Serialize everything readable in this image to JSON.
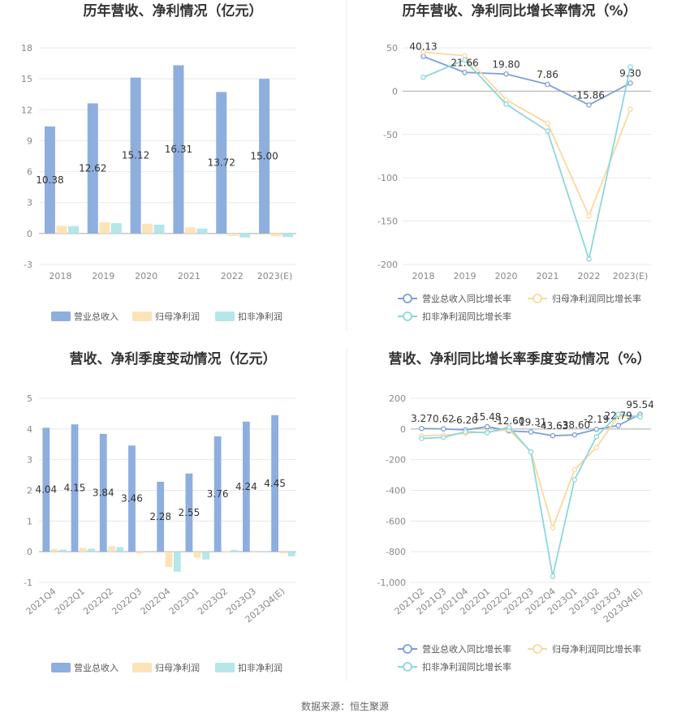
{
  "source": "数据来源：恒生聚源",
  "colors": {
    "revenue": "#8eaede",
    "net": "#fde3b8",
    "deducted": "#b4e6ea",
    "revenue_line": "#7b9ed9",
    "net_line": "#fbd89c",
    "deducted_line": "#8ad7de"
  },
  "chart_data": [
    {
      "type": "bar",
      "title": "历年营收、净利情况（亿元）",
      "categories": [
        "2018",
        "2019",
        "2020",
        "2021",
        "2022",
        "2023(E)"
      ],
      "ylim": [
        -3,
        18
      ],
      "yticks": [
        "18",
        "15",
        "12",
        "9",
        "6",
        "3",
        "0",
        "-3"
      ],
      "series": [
        {
          "name": "营业总收入",
          "values": [
            10.38,
            12.62,
            15.12,
            16.31,
            13.72,
            15.0
          ],
          "labels": [
            "10.38",
            "12.62",
            "15.12",
            "16.31",
            "13.72",
            "15.00"
          ]
        },
        {
          "name": "归母净利润",
          "values": [
            0.75,
            1.08,
            0.95,
            0.6,
            -0.22,
            -0.28
          ]
        },
        {
          "name": "扣非净利润",
          "values": [
            0.72,
            1.0,
            0.85,
            0.48,
            -0.38,
            -0.35
          ]
        }
      ],
      "legend_position": "bottom"
    },
    {
      "type": "line",
      "title": "历年营收、净利同比增长率情况（%）",
      "categories": [
        "2018",
        "2019",
        "2020",
        "2021",
        "2022",
        "2023(E)"
      ],
      "ylim": [
        -200,
        50
      ],
      "yticks": [
        "50",
        "0",
        "-50",
        "-100",
        "-150",
        "-200"
      ],
      "series": [
        {
          "name": "营业总收入同比增长率",
          "values": [
            40.13,
            21.66,
            19.8,
            7.86,
            -15.86,
            9.3
          ],
          "labels": [
            "40.13",
            "21.66",
            "19.80",
            "7.86",
            "-15.86",
            "9.30"
          ]
        },
        {
          "name": "归母净利润同比增长率",
          "values": [
            45,
            41,
            -10,
            -37,
            -144,
            -21
          ]
        },
        {
          "name": "扣非净利润同比增长率",
          "values": [
            16,
            36,
            -15,
            -46,
            -194,
            28
          ]
        }
      ],
      "legend_position": "bottom"
    },
    {
      "type": "bar",
      "title": "营收、净利季度变动情况（亿元）",
      "categories": [
        "2021Q4",
        "2022Q1",
        "2022Q2",
        "2022Q3",
        "2022Q4",
        "2023Q1",
        "2023Q2",
        "2023Q3",
        "2023Q4(E)"
      ],
      "ylim": [
        -1,
        5
      ],
      "yticks": [
        "5",
        "4",
        "3",
        "2",
        "1",
        "0",
        "-1"
      ],
      "series": [
        {
          "name": "营业总收入",
          "values": [
            4.04,
            4.15,
            3.84,
            3.46,
            2.28,
            2.55,
            3.76,
            4.24,
            4.45
          ],
          "labels": [
            "4.04",
            "4.15",
            "3.84",
            "3.46",
            "2.28",
            "2.55",
            "3.76",
            "4.24",
            "4.45"
          ]
        },
        {
          "name": "归母净利润",
          "values": [
            0.09,
            0.12,
            0.18,
            -0.06,
            -0.5,
            -0.2,
            0.02,
            0.0,
            -0.05
          ]
        },
        {
          "name": "扣非净利润",
          "values": [
            0.07,
            0.1,
            0.15,
            -0.02,
            -0.65,
            -0.25,
            0.06,
            0.0,
            -0.15
          ]
        }
      ],
      "legend_position": "bottom"
    },
    {
      "type": "line",
      "title": "营收、净利同比增长率季度变动情况（%）",
      "categories": [
        "2021Q2",
        "2021Q3",
        "2021Q4",
        "2022Q1",
        "2022Q2",
        "2022Q3",
        "2022Q4",
        "2023Q1",
        "2023Q2",
        "2023Q3",
        "2023Q4(E)"
      ],
      "ylim": [
        -1000,
        200
      ],
      "yticks": [
        "200",
        "0",
        "-200",
        "-400",
        "-600",
        "-800",
        "-1,000"
      ],
      "series": [
        {
          "name": "营业总收入同比增长率",
          "values": [
            3.27,
            0.62,
            -6.2,
            15.48,
            -12.6,
            -19.31,
            -43.63,
            -38.6,
            -2.19,
            22.79,
            95.54
          ],
          "labels": [
            "3.27",
            "0.62",
            "-6.20",
            "15.48",
            "-12.60",
            "-19.31",
            "-43.63",
            "-38.60",
            "-2.19",
            "22.79",
            "95.54"
          ]
        },
        {
          "name": "归母净利润同比增长率",
          "values": [
            -45,
            -40,
            -28,
            -18,
            -5,
            -148,
            -645,
            -265,
            -120,
            85,
            82
          ]
        },
        {
          "name": "扣非净利润同比增长率",
          "values": [
            -62,
            -55,
            -18,
            -25,
            12,
            -150,
            -960,
            -330,
            -50,
            95,
            78
          ]
        }
      ],
      "legend_position": "bottom"
    }
  ]
}
